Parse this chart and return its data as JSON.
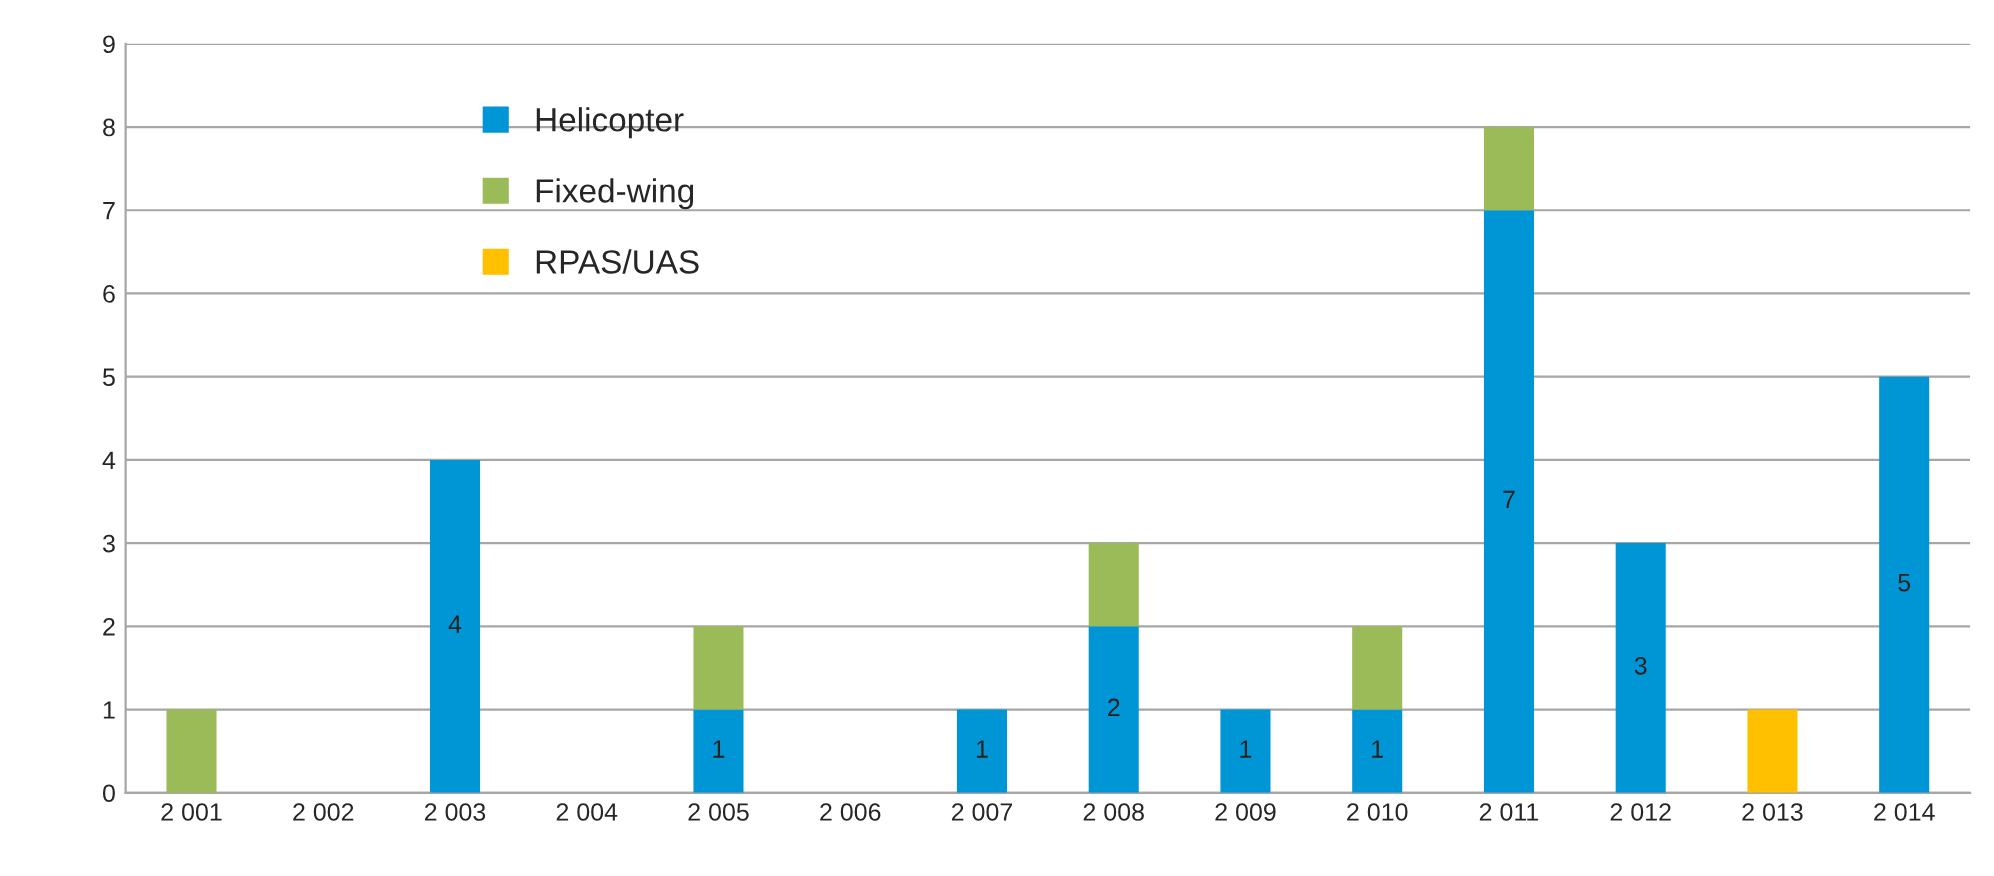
{
  "chart_data": {
    "type": "bar",
    "stacked": true,
    "categories": [
      "2 001",
      "2 002",
      "2 003",
      "2 004",
      "2 005",
      "2 006",
      "2 007",
      "2 008",
      "2 009",
      "2 010",
      "2 011",
      "2 012",
      "2 013",
      "2 014"
    ],
    "series": [
      {
        "name": "Helicopter",
        "color": "#0096d6",
        "values": [
          0,
          0,
          4,
          0,
          1,
          0,
          1,
          2,
          1,
          1,
          7,
          3,
          0,
          5
        ],
        "value_labels": [
          null,
          null,
          "4",
          null,
          "1",
          null,
          "1",
          "2",
          "1",
          "1",
          "7",
          "3",
          null,
          "5"
        ]
      },
      {
        "name": "Fixed-wing",
        "color": "#9bbb59",
        "values": [
          1,
          0,
          0,
          0,
          1,
          0,
          0,
          1,
          0,
          1,
          1,
          0,
          0,
          0
        ]
      },
      {
        "name": "RPAS/UAS",
        "color": "#ffc000",
        "values": [
          0,
          0,
          0,
          0,
          0,
          0,
          0,
          0,
          0,
          0,
          0,
          0,
          1,
          0
        ]
      }
    ],
    "ylim": [
      0,
      9
    ],
    "yticks": [
      0,
      1,
      2,
      3,
      4,
      5,
      6,
      7,
      8,
      9
    ],
    "grid": "y",
    "legend": "top left"
  }
}
